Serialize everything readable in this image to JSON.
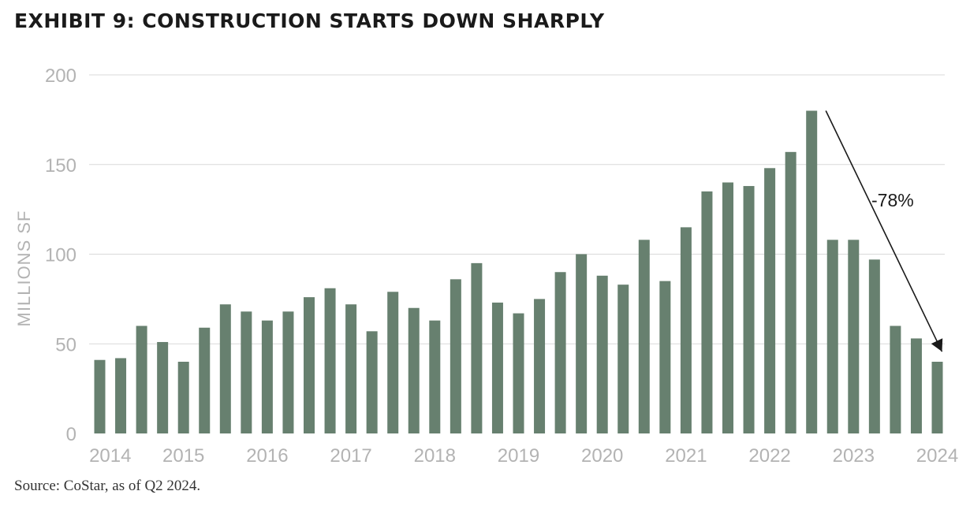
{
  "header": {
    "title": "EXHIBIT 9: CONSTRUCTION STARTS DOWN SHARPLY"
  },
  "footer": {
    "source": "Source: CoStar, as of Q2 2024."
  },
  "colors": {
    "bar": "#67806f",
    "grid": "#d9d9d9",
    "axis_text": "#b3b3b3",
    "annotation": "#1a1a1a"
  },
  "chart_data": {
    "type": "bar",
    "title": "EXHIBIT 9: CONSTRUCTION STARTS DOWN SHARPLY",
    "xlabel": "",
    "ylabel": "MILLIONS SF",
    "ylim": [
      0,
      200
    ],
    "yticks": [
      0,
      50,
      100,
      150,
      200
    ],
    "grid": true,
    "legend": "none",
    "year_labels": [
      "2014",
      "2015",
      "2016",
      "2017",
      "2018",
      "2019",
      "2020",
      "2021",
      "2022",
      "2023",
      "2024"
    ],
    "values": [
      41,
      42,
      60,
      51,
      40,
      59,
      72,
      68,
      63,
      68,
      76,
      81,
      72,
      57,
      79,
      70,
      63,
      86,
      95,
      73,
      67,
      75,
      90,
      100,
      88,
      83,
      108,
      85,
      115,
      135,
      140,
      138,
      148,
      157,
      180,
      108,
      108,
      97,
      60,
      53,
      40
    ],
    "annotation": {
      "text": "-78%",
      "from_index": 34,
      "to_index": 40
    }
  }
}
